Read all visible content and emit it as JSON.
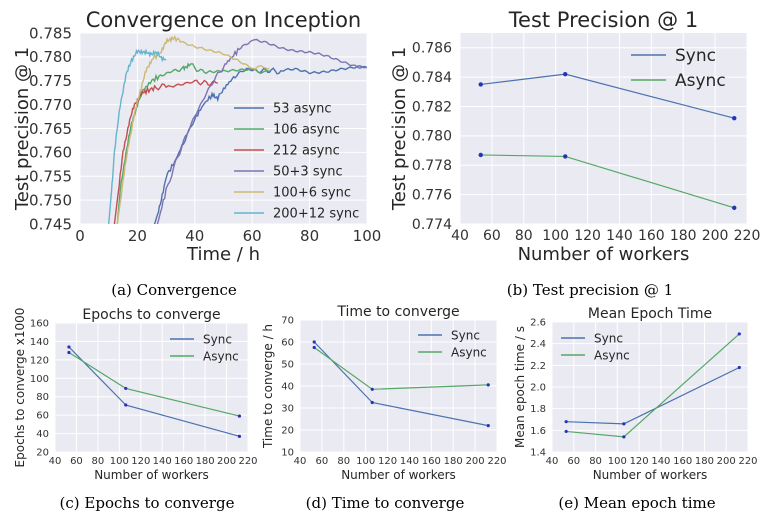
{
  "chart_data": [
    {
      "id": "a",
      "type": "line",
      "title": "Convergence on Inception",
      "xlabel": "Time / h",
      "ylabel": "Test precision @ 1",
      "xlim": [
        0,
        100
      ],
      "ylim": [
        0.745,
        0.785
      ],
      "xticks": [
        0,
        20,
        40,
        60,
        80,
        100
      ],
      "yticks": [
        0.745,
        0.75,
        0.755,
        0.76,
        0.765,
        0.77,
        0.775,
        0.78,
        0.785
      ],
      "ytick_labels": [
        "0.745",
        "0.750",
        "0.755",
        "0.760",
        "0.765",
        "0.770",
        "0.775",
        "0.780",
        "0.785"
      ],
      "grid": true,
      "legend_position": "center-right",
      "caption": "(a) Convergence",
      "series": [
        {
          "name": "53 async",
          "color": "#4c72b0",
          "x": [
            26,
            28,
            30,
            33,
            36,
            40,
            43,
            46,
            48,
            51,
            54,
            58,
            62,
            66,
            70,
            75,
            80,
            85,
            90,
            95,
            100
          ],
          "y": [
            0.745,
            0.749,
            0.755,
            0.758,
            0.762,
            0.767,
            0.77,
            0.772,
            0.7715,
            0.774,
            0.776,
            0.7775,
            0.777,
            0.7772,
            0.7768,
            0.7772,
            0.7768,
            0.7772,
            0.7775,
            0.7775,
            0.7778
          ]
        },
        {
          "name": "106 async",
          "color": "#55a868",
          "x": [
            13,
            14,
            16,
            18,
            20,
            22,
            25,
            28,
            32,
            36,
            38,
            42,
            46,
            50,
            55,
            60,
            66
          ],
          "y": [
            0.745,
            0.752,
            0.76,
            0.766,
            0.77,
            0.773,
            0.775,
            0.776,
            0.777,
            0.7775,
            0.7785,
            0.777,
            0.7768,
            0.7772,
            0.777,
            0.777,
            0.777
          ]
        },
        {
          "name": "212 async",
          "color": "#c44e52",
          "x": [
            12,
            13,
            15,
            17,
            19,
            21,
            23,
            26,
            30,
            35,
            40,
            44,
            48
          ],
          "y": [
            0.745,
            0.75,
            0.76,
            0.766,
            0.77,
            0.772,
            0.7728,
            0.7735,
            0.774,
            0.7745,
            0.7748,
            0.7745,
            0.7745
          ]
        },
        {
          "name": "50+3 sync",
          "color": "#8172b2",
          "x": [
            27,
            30,
            34,
            38,
            42,
            46,
            50,
            53,
            56,
            60,
            65,
            70,
            75,
            80,
            85,
            90,
            95,
            100
          ],
          "y": [
            0.745,
            0.752,
            0.759,
            0.765,
            0.77,
            0.7745,
            0.778,
            0.78,
            0.782,
            0.7833,
            0.783,
            0.7822,
            0.7815,
            0.7808,
            0.78,
            0.7792,
            0.7785,
            0.7778
          ]
        },
        {
          "name": "100+6 sync",
          "color": "#ccb974",
          "x": [
            13,
            15,
            17,
            19,
            21,
            23,
            25,
            28,
            30,
            32,
            35,
            40,
            45,
            50,
            55,
            60,
            66
          ],
          "y": [
            0.745,
            0.754,
            0.762,
            0.768,
            0.773,
            0.777,
            0.7795,
            0.781,
            0.783,
            0.784,
            0.7835,
            0.782,
            0.781,
            0.7805,
            0.7795,
            0.778,
            0.7775
          ]
        },
        {
          "name": "200+12 sync",
          "color": "#64b5cd",
          "x": [
            10,
            11,
            12,
            14,
            16,
            18,
            20,
            22,
            24,
            26,
            28,
            30
          ],
          "y": [
            0.745,
            0.752,
            0.76,
            0.77,
            0.776,
            0.7795,
            0.781,
            0.7812,
            0.7805,
            0.781,
            0.78,
            0.7795
          ]
        }
      ]
    },
    {
      "id": "b",
      "type": "line",
      "title": "Test Precision @ 1",
      "xlabel": "Number of workers",
      "ylabel": "Test precision @ 1",
      "xlim": [
        40,
        220
      ],
      "ylim": [
        0.774,
        0.787
      ],
      "xticks": [
        40,
        60,
        80,
        100,
        120,
        140,
        160,
        180,
        200,
        220
      ],
      "yticks": [
        0.774,
        0.776,
        0.778,
        0.78,
        0.782,
        0.784,
        0.786
      ],
      "ytick_labels": [
        "0.774",
        "0.776",
        "0.778",
        "0.780",
        "0.782",
        "0.784",
        "0.786"
      ],
      "grid": true,
      "legend_position": "top-right",
      "caption": "(b) Test precision @ 1",
      "categories": [
        53,
        106,
        212
      ],
      "series": [
        {
          "name": "Sync",
          "color": "#4c72b0",
          "values": [
            0.7835,
            0.7842,
            0.7812
          ]
        },
        {
          "name": "Async",
          "color": "#55a868",
          "values": [
            0.7787,
            0.7786,
            0.7751
          ]
        }
      ]
    },
    {
      "id": "c",
      "type": "line",
      "title": "Epochs to converge",
      "xlabel": "Number of workers",
      "ylabel": "Epochs to converge x1000",
      "xlim": [
        40,
        220
      ],
      "ylim": [
        20,
        160
      ],
      "xticks": [
        40,
        60,
        80,
        100,
        120,
        140,
        160,
        180,
        200,
        220
      ],
      "yticks": [
        20,
        40,
        60,
        80,
        100,
        120,
        140,
        160
      ],
      "ytick_labels": [
        "20",
        "40",
        "60",
        "80",
        "100",
        "120",
        "140",
        "160"
      ],
      "grid": true,
      "legend_position": "top-right",
      "caption": "(c) Epochs to converge",
      "categories": [
        53,
        106,
        212
      ],
      "series": [
        {
          "name": "Sync",
          "color": "#4c72b0",
          "values": [
            134,
            71,
            37
          ]
        },
        {
          "name": "Async",
          "color": "#55a868",
          "values": [
            128,
            89,
            59
          ]
        }
      ]
    },
    {
      "id": "d",
      "type": "line",
      "title": "Time to converge",
      "xlabel": "Number of workers",
      "ylabel": "Time to converge / h",
      "xlim": [
        40,
        220
      ],
      "ylim": [
        10,
        70
      ],
      "xticks": [
        40,
        60,
        80,
        100,
        120,
        140,
        160,
        180,
        200,
        220
      ],
      "yticks": [
        10,
        20,
        30,
        40,
        50,
        60,
        70
      ],
      "ytick_labels": [
        "10",
        "20",
        "30",
        "40",
        "50",
        "60",
        "70"
      ],
      "grid": true,
      "legend_position": "top-right",
      "caption": "(d) Time to converge",
      "categories": [
        53,
        106,
        212
      ],
      "series": [
        {
          "name": "Sync",
          "color": "#4c72b0",
          "values": [
            60,
            32.5,
            22
          ]
        },
        {
          "name": "Async",
          "color": "#55a868",
          "values": [
            57.5,
            38.5,
            40.5
          ]
        }
      ]
    },
    {
      "id": "e",
      "type": "line",
      "title": "Mean Epoch Time",
      "xlabel": "Number of workers",
      "ylabel": "Mean epoch time / s",
      "xlim": [
        40,
        220
      ],
      "ylim": [
        1.4,
        2.6
      ],
      "xticks": [
        40,
        60,
        80,
        100,
        120,
        140,
        160,
        180,
        200,
        220
      ],
      "yticks": [
        1.4,
        1.6,
        1.8,
        2.0,
        2.2,
        2.4,
        2.6
      ],
      "ytick_labels": [
        "1.4",
        "1.6",
        "1.8",
        "2.0",
        "2.2",
        "2.4",
        "2.6"
      ],
      "grid": true,
      "legend_position": "top-left",
      "caption": "(e) Mean epoch time",
      "categories": [
        53,
        106,
        212
      ],
      "series": [
        {
          "name": "Sync",
          "color": "#4c72b0",
          "values": [
            1.68,
            1.66,
            2.18
          ]
        },
        {
          "name": "Async",
          "color": "#55a868",
          "values": [
            1.59,
            1.54,
            2.49
          ]
        }
      ]
    }
  ]
}
